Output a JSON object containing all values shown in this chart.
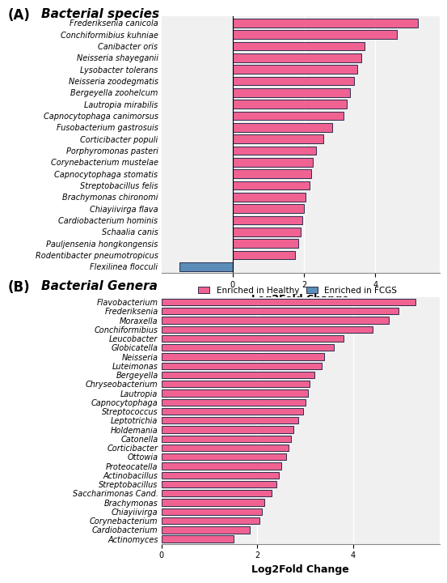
{
  "panel_A": {
    "title": "Bacterial species",
    "panel_label": "(A)",
    "species": [
      "Frederiksenia canicola",
      "Conchiformibius kuhniae",
      "Canibacter oris",
      "Neisseria shayeganii",
      "Lysobacter tolerans",
      "Neisseria zoodegmatis",
      "Bergeyella zoohelcum",
      "Lautropia mirabilis",
      "Capnocytophaga canimorsus",
      "Fusobacterium gastrosuis",
      "Corticibacter populi",
      "Porphyromonas pasteri",
      "Corynebacterium mustelae",
      "Capnocytophaga stomatis",
      "Streptobacillus felis",
      "Brachymonas chironomi",
      "Chiayiivirga flava",
      "Cardiobacterium hominis",
      "Schaalia canis",
      "Pauljensenia hongkongensis",
      "Rodentibacter pneumotropicus",
      "Flexilinea flocculi"
    ],
    "values": [
      5.2,
      4.6,
      3.7,
      3.6,
      3.5,
      3.4,
      3.3,
      3.2,
      3.1,
      2.8,
      2.55,
      2.35,
      2.25,
      2.2,
      2.15,
      2.05,
      2.0,
      1.95,
      1.9,
      1.85,
      1.75,
      -1.5
    ],
    "colors": [
      "#f06292",
      "#f06292",
      "#f06292",
      "#f06292",
      "#f06292",
      "#f06292",
      "#f06292",
      "#f06292",
      "#f06292",
      "#f06292",
      "#f06292",
      "#f06292",
      "#f06292",
      "#f06292",
      "#f06292",
      "#f06292",
      "#f06292",
      "#f06292",
      "#f06292",
      "#f06292",
      "#f06292",
      "#5b8db8"
    ],
    "xlabel": "Log2Fold Change",
    "xlim": [
      -2.0,
      5.8
    ],
    "xticks": [
      0,
      2,
      4
    ]
  },
  "panel_B": {
    "title": "Bacterial Genera",
    "panel_label": "(B)",
    "species": [
      "Flavobacterium",
      "Frederiksenia",
      "Moraxella",
      "Conchiformibius",
      "Leucobacter",
      "Globicatella",
      "Neisseria",
      "Luteimonas",
      "Bergeyella",
      "Chryseobacterium",
      "Lautropia",
      "Capnocytophaga",
      "Streptococcus",
      "Leptotrichia",
      "Holdemania",
      "Catonella",
      "Corticibacter",
      "Ottowia",
      "Proteocatella",
      "Actinobacillus",
      "Streptobacillus",
      "Saccharimonas Cand.",
      "Brachymonas",
      "Chiayiivirga",
      "Corynebacterium",
      "Cardiobacterium",
      "Actinomyces"
    ],
    "values": [
      5.3,
      4.95,
      4.75,
      4.4,
      3.8,
      3.6,
      3.4,
      3.35,
      3.2,
      3.1,
      3.05,
      3.0,
      2.95,
      2.85,
      2.75,
      2.7,
      2.65,
      2.6,
      2.5,
      2.45,
      2.4,
      2.3,
      2.15,
      2.1,
      2.05,
      1.85,
      1.5
    ],
    "colors": [
      "#f06292",
      "#f06292",
      "#f06292",
      "#f06292",
      "#f06292",
      "#f06292",
      "#f06292",
      "#f06292",
      "#f06292",
      "#f06292",
      "#f06292",
      "#f06292",
      "#f06292",
      "#f06292",
      "#f06292",
      "#f06292",
      "#f06292",
      "#f06292",
      "#f06292",
      "#f06292",
      "#f06292",
      "#f06292",
      "#f06292",
      "#f06292",
      "#f06292",
      "#f06292",
      "#f06292"
    ],
    "xlabel": "Log2Fold Change",
    "xlim": [
      0,
      5.8
    ],
    "xticks": [
      0,
      2,
      4
    ],
    "legend": {
      "healthy_label": "Enriched in Healthy",
      "fcgs_label": "Enriched in FCGS",
      "healthy_color": "#f06292",
      "fcgs_color": "#5b8db8"
    }
  },
  "background_color": "#f0f0f0",
  "bar_edgecolor": "#2d2d4e",
  "bar_linewidth": 0.7,
  "tick_fontsize": 7.0,
  "label_fontsize": 9,
  "title_fontsize": 11
}
